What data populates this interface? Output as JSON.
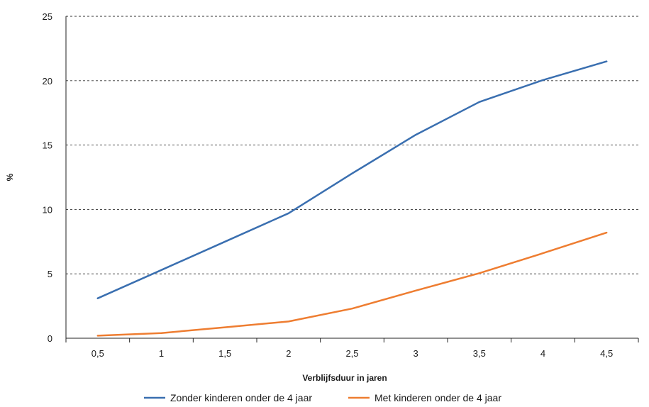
{
  "chart_data": {
    "type": "line",
    "title": "",
    "xlabel": "Verblijfsduur in jaren",
    "ylabel": "%",
    "x": [
      "0,5",
      "1",
      "1,5",
      "2",
      "2,5",
      "3",
      "3,5",
      "4",
      "4,5"
    ],
    "ylim": [
      0,
      25
    ],
    "yticks": [
      "0",
      "5",
      "10",
      "15",
      "20",
      "25"
    ],
    "grid": "horizontal dashed",
    "legend_position": "bottom",
    "series": [
      {
        "name": "Zonder kinderen onder de 4 jaar",
        "color": "#3a6fb0",
        "values": [
          3.1,
          5.3,
          7.5,
          9.7,
          12.8,
          15.8,
          18.35,
          20.05,
          21.5
        ]
      },
      {
        "name": "Met kinderen onder de 4 jaar",
        "color": "#ee7d31",
        "values": [
          0.2,
          0.4,
          0.85,
          1.3,
          2.3,
          3.7,
          5.05,
          6.6,
          8.2
        ]
      }
    ]
  }
}
